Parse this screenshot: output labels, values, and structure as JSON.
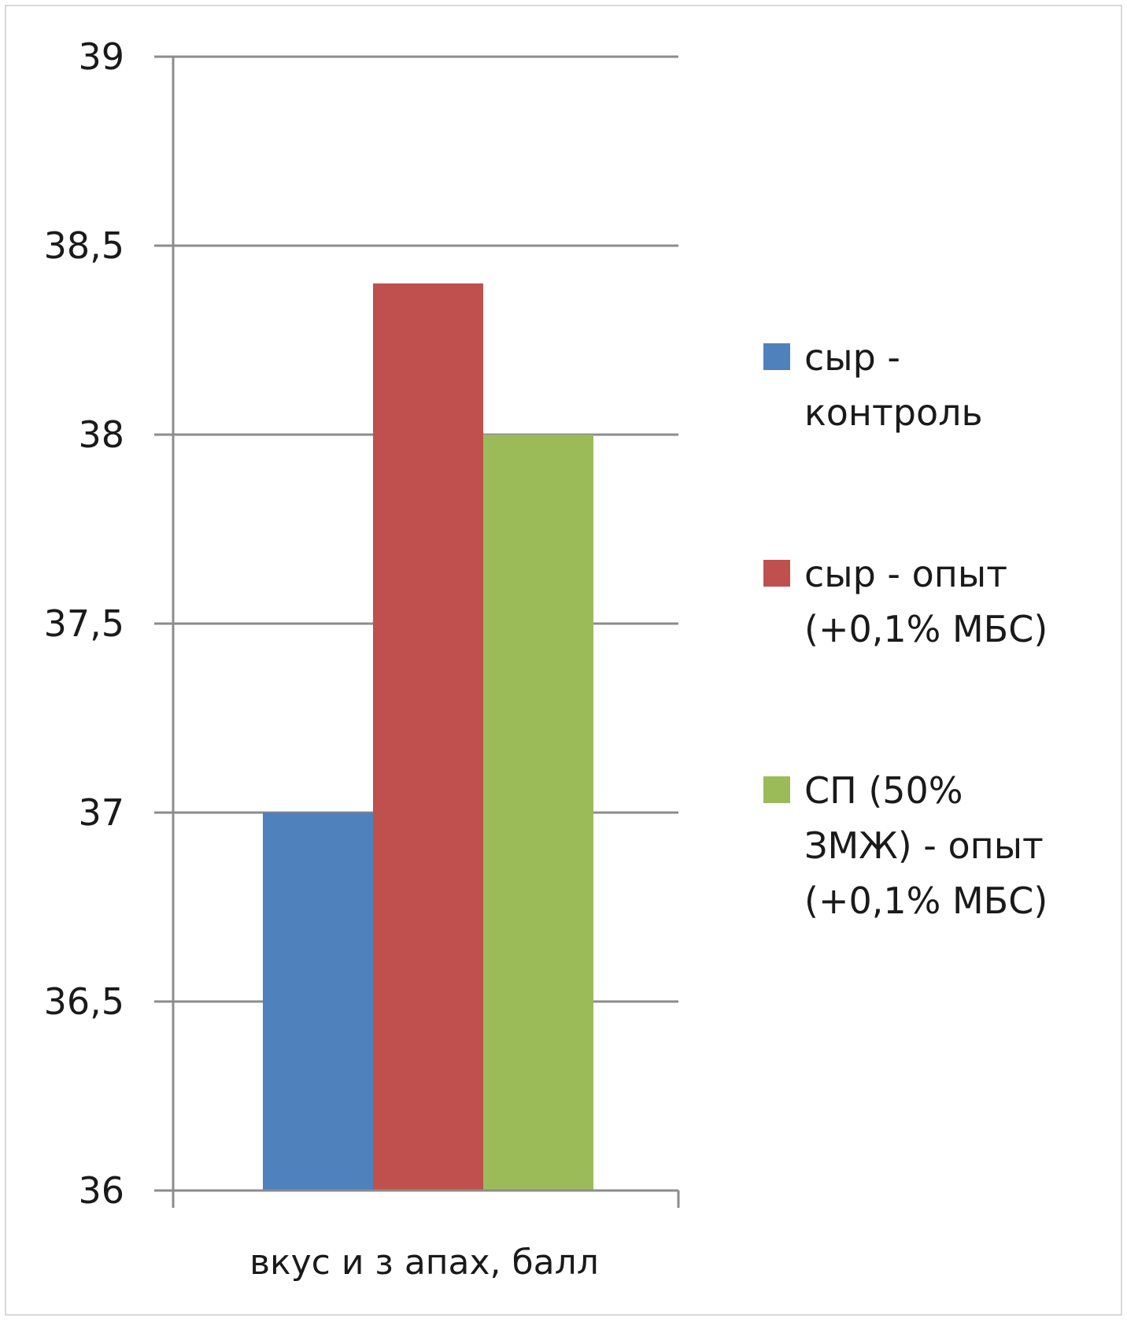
{
  "chart_data": {
    "type": "bar",
    "categories": [
      "вкус и з апах, балл"
    ],
    "series": [
      {
        "name": "сыр - контроль",
        "values": [
          37.0
        ],
        "color": "#4f81bd",
        "legend_lines": [
          "сыр -",
          "контроль"
        ]
      },
      {
        "name": "сыр - опыт (+0,1% МБС)",
        "values": [
          38.4
        ],
        "color": "#c0504d",
        "legend_lines": [
          "сыр - опыт",
          "(+0,1% МБС)"
        ]
      },
      {
        "name": "СП (50% ЗМЖ) - опыт (+0,1% МБС)",
        "values": [
          38.0
        ],
        "color": "#9bbb59",
        "legend_lines": [
          "СП (50%",
          "ЗМЖ) - опыт",
          "(+0,1% МБС)"
        ]
      }
    ],
    "ylim": [
      36,
      39
    ],
    "yticks": [
      "36",
      "36,5",
      "37",
      "37,5",
      "38",
      "38,5",
      "39"
    ],
    "grid": true,
    "legend_position": "right",
    "title": "",
    "xlabel": "",
    "ylabel": ""
  }
}
